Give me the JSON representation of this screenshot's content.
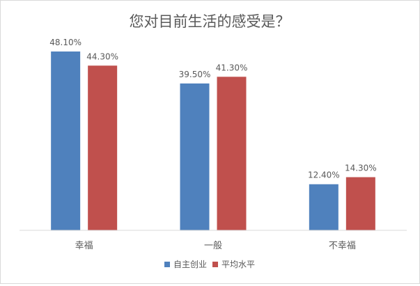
{
  "chart_data": {
    "type": "bar",
    "title": "您对目前生活的感受是？",
    "categories": [
      "幸福",
      "一般",
      "不幸福"
    ],
    "series": [
      {
        "name": "自主创业",
        "values": [
          48.1,
          39.5,
          12.4
        ],
        "labels": [
          "48.10%",
          "39.50%",
          "12.40%"
        ],
        "color": "#4f81bd"
      },
      {
        "name": "平均水平",
        "values": [
          44.3,
          41.3,
          14.3
        ],
        "labels": [
          "44.30%",
          "41.30%",
          "14.30%"
        ],
        "color": "#c0504d"
      }
    ],
    "ylim": [
      0,
      50
    ],
    "grid": false,
    "legend_position": "bottom",
    "colors": {
      "title": "#595959",
      "label": "#595959",
      "axis": "#d9d9d9"
    }
  }
}
